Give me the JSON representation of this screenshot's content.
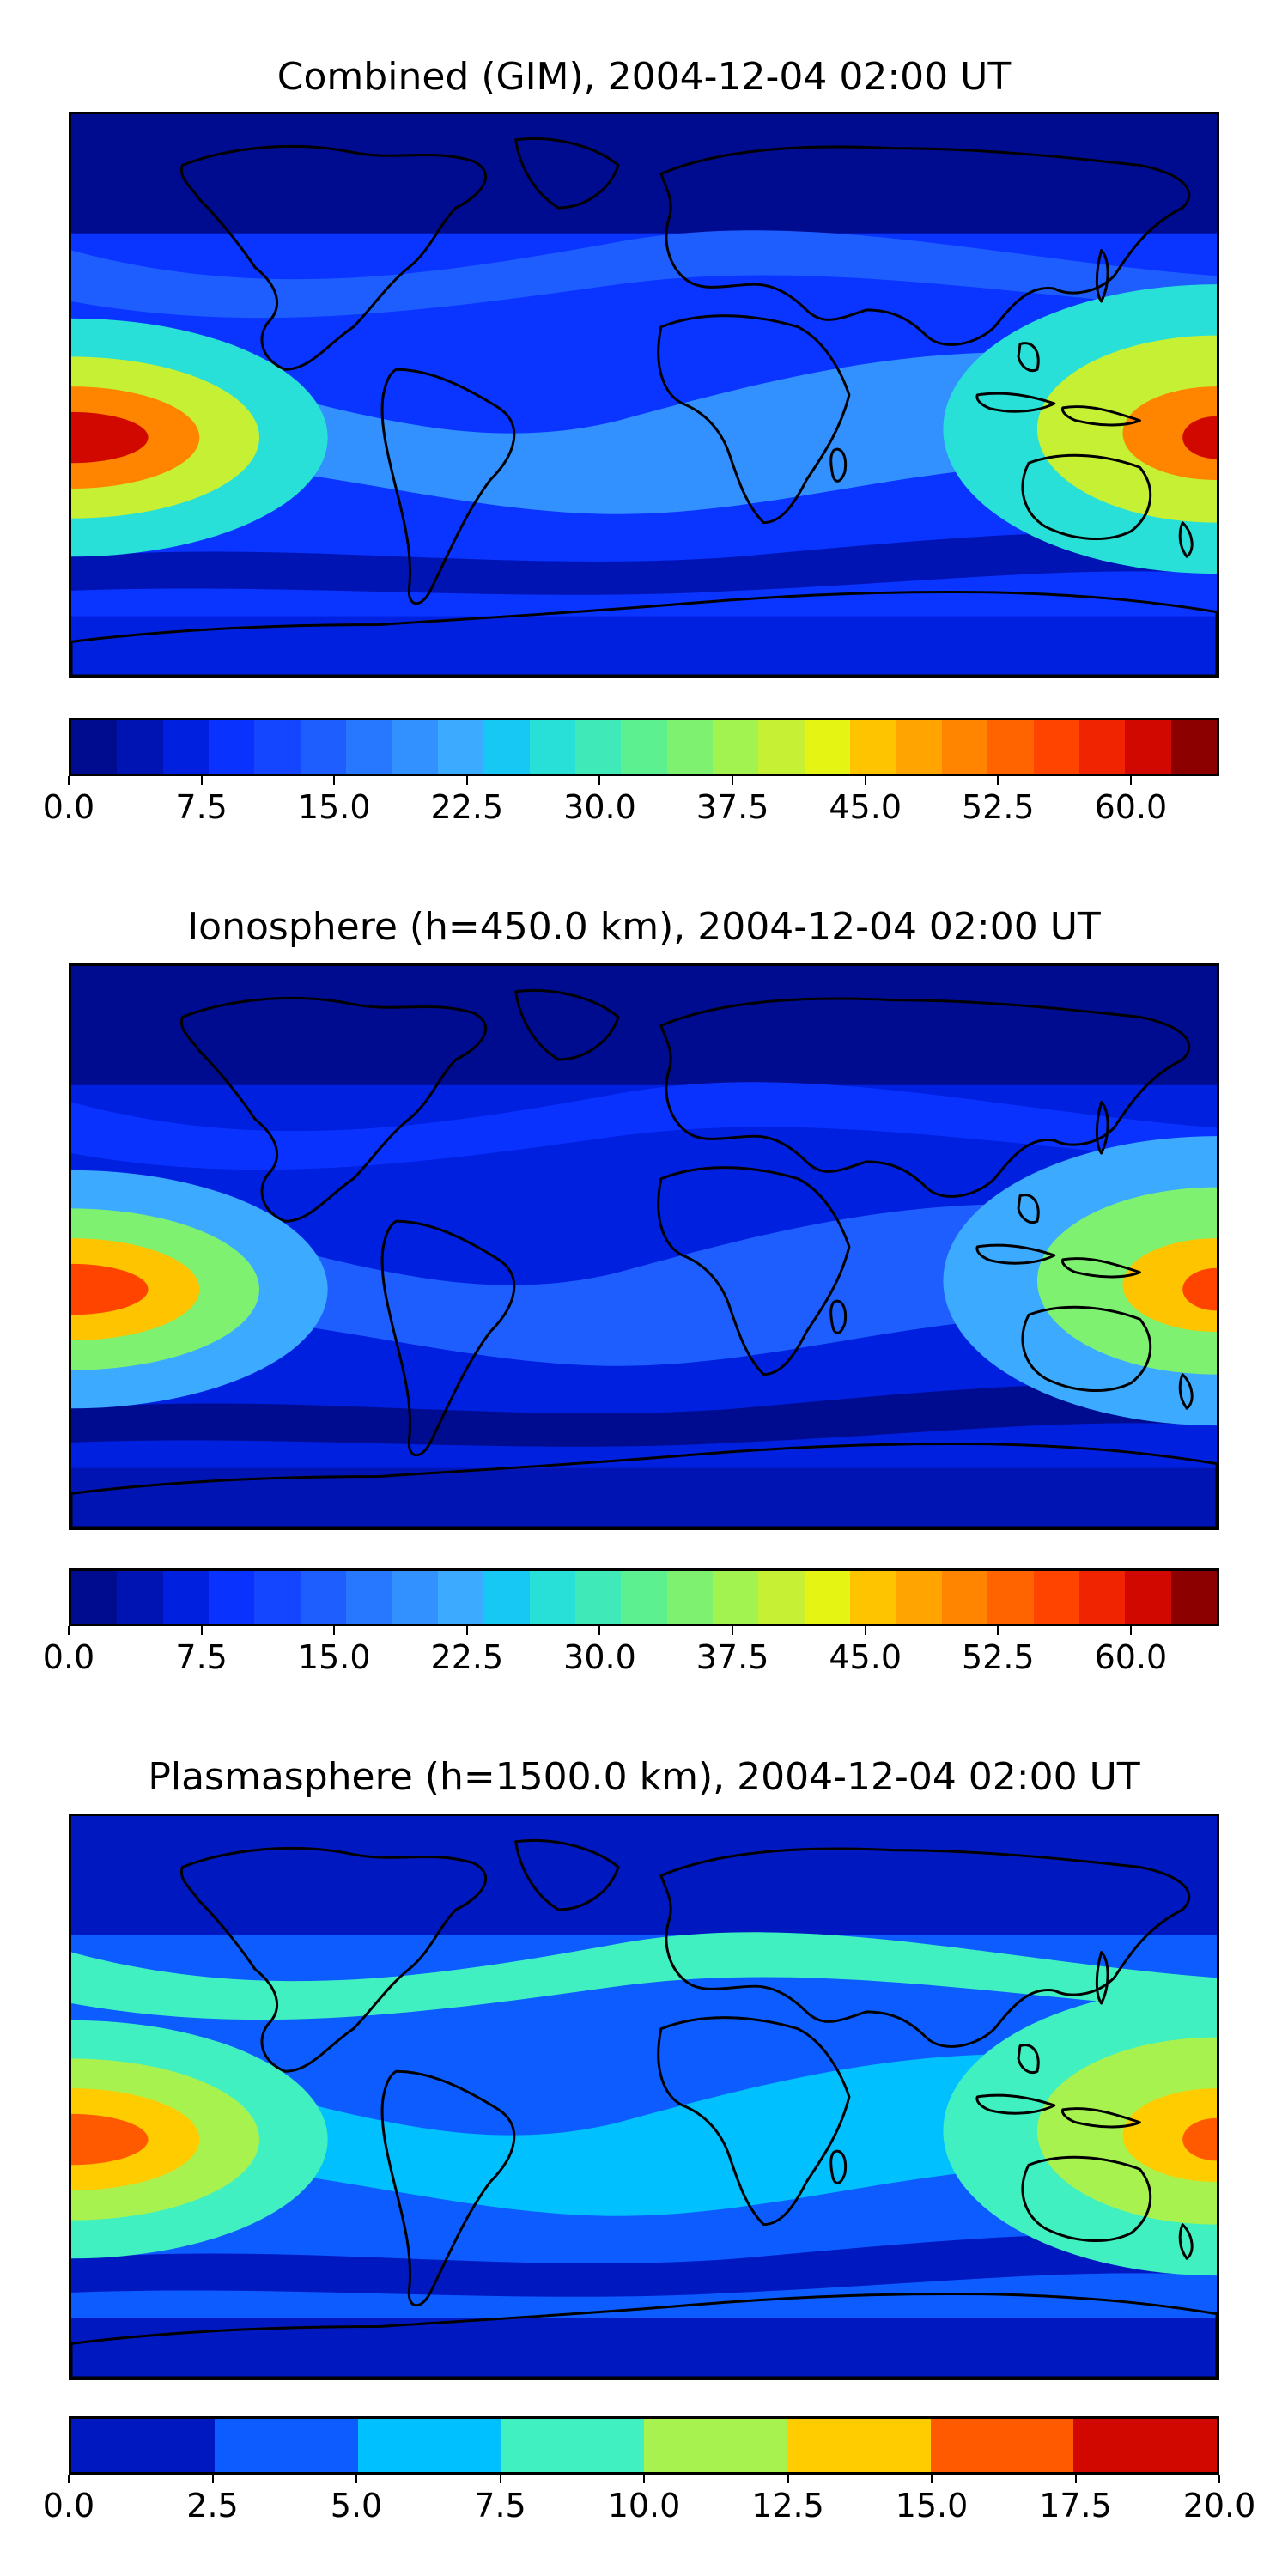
{
  "panels": [
    {
      "title": "Combined (GIM), 2004-12-04 02:00 UT",
      "colorbar": {
        "ticks": [
          "0.0",
          "7.5",
          "15.0",
          "22.5",
          "30.0",
          "37.5",
          "45.0",
          "52.5",
          "60.0"
        ],
        "tick_values": [
          0,
          7.5,
          15,
          22.5,
          30,
          37.5,
          45,
          52.5,
          60
        ],
        "vmin": 0,
        "vmax": 65,
        "colors": [
          "#000c8f",
          "#0014b4",
          "#0020e0",
          "#0a32ff",
          "#1446ff",
          "#1e5eff",
          "#2878ff",
          "#3290ff",
          "#3caaff",
          "#18c8f4",
          "#28e0d8",
          "#40eab8",
          "#5cf090",
          "#7ef270",
          "#a2f250",
          "#c6f034",
          "#e6f414",
          "#ffc400",
          "#ffa400",
          "#ff8400",
          "#ff6400",
          "#ff4400",
          "#f02400",
          "#d00800",
          "#8c0000"
        ]
      },
      "map_colors": {
        "bg": "#0a34ff",
        "poleN": "#000c8f",
        "poleS": "#0020e0",
        "band": "#3290ff",
        "wave": "#1e5eff",
        "mid": "#28e0d8",
        "high": "#c6f034",
        "peak": "#ff8400",
        "core": "#d00800",
        "dark": "#0014b4"
      }
    },
    {
      "title": "Ionosphere  (h=450.0 km), 2004-12-04 02:00 UT",
      "colorbar": {
        "ticks": [
          "0.0",
          "7.5",
          "15.0",
          "22.5",
          "30.0",
          "37.5",
          "45.0",
          "52.5",
          "60.0"
        ],
        "tick_values": [
          0,
          7.5,
          15,
          22.5,
          30,
          37.5,
          45,
          52.5,
          60
        ],
        "vmin": 0,
        "vmax": 65,
        "colors": [
          "#000c8f",
          "#0014b4",
          "#0020e0",
          "#0a32ff",
          "#1446ff",
          "#1e5eff",
          "#2878ff",
          "#3290ff",
          "#3caaff",
          "#18c8f4",
          "#28e0d8",
          "#40eab8",
          "#5cf090",
          "#7ef270",
          "#a2f250",
          "#c6f034",
          "#e6f414",
          "#ffc400",
          "#ffa400",
          "#ff8400",
          "#ff6400",
          "#ff4400",
          "#f02400",
          "#d00800",
          "#8c0000"
        ]
      },
      "map_colors": {
        "bg": "#0020e0",
        "poleN": "#000c8f",
        "poleS": "#0014b4",
        "band": "#1e5eff",
        "wave": "#0a32ff",
        "mid": "#3caaff",
        "high": "#7ef270",
        "peak": "#ffc400",
        "core": "#ff4400",
        "dark": "#000c8f"
      }
    },
    {
      "title": "Plasmasphere (h=1500.0 km), 2004-12-04 02:00 UT",
      "colorbar": {
        "ticks": [
          "0.0",
          "2.5",
          "5.0",
          "7.5",
          "10.0",
          "12.5",
          "15.0",
          "17.5",
          "20.0"
        ],
        "tick_values": [
          0,
          2.5,
          5,
          7.5,
          10,
          12.5,
          15,
          17.5,
          20
        ],
        "vmin": 0,
        "vmax": 20,
        "colors": [
          "#0018c0",
          "#0c5cff",
          "#00c0ff",
          "#40f0c0",
          "#a8f250",
          "#ffcc00",
          "#ff5a00",
          "#d00800"
        ]
      },
      "map_colors": {
        "bg": "#0c5cff",
        "poleN": "#0018c0",
        "poleS": "#0018c0",
        "band": "#00c0ff",
        "wave": "#40f0c0",
        "mid": "#40f0c0",
        "high": "#a8f250",
        "peak": "#ffcc00",
        "core": "#ff5a00",
        "dark": "#0018c0"
      }
    }
  ]
}
